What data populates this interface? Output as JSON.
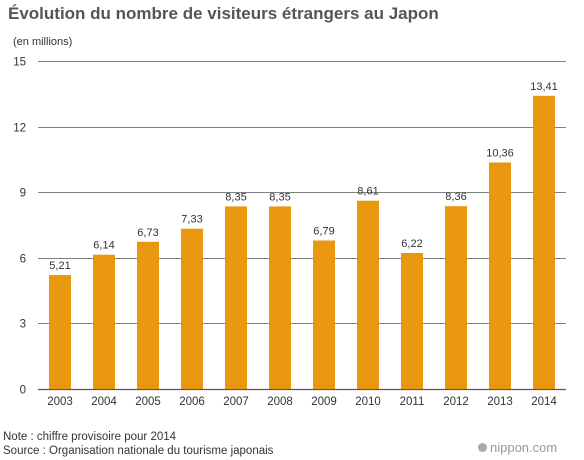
{
  "header": {
    "title": "Évolution du nombre de visiteurs étrangers au Japon",
    "unit_label": "(en millions)"
  },
  "footer": {
    "note": "Note : chiffre provisoire pour 2014",
    "source": "Source : Organisation nationale du tourisme japonais",
    "brand": "nippon.com"
  },
  "chart_data": {
    "type": "bar",
    "title": "Évolution du nombre de visiteurs étrangers au Japon",
    "ylabel": "(en millions)",
    "xlabel": "",
    "categories": [
      "2003",
      "2004",
      "2005",
      "2006",
      "2007",
      "2008",
      "2009",
      "2010",
      "2011",
      "2012",
      "2013",
      "2014"
    ],
    "values": [
      5.21,
      6.14,
      6.73,
      7.33,
      8.35,
      8.35,
      6.79,
      8.61,
      6.22,
      8.36,
      10.36,
      13.41
    ],
    "data_labels": [
      "5,21",
      "6,14",
      "6,73",
      "7,33",
      "8,35",
      "8,35",
      "6,79",
      "8,61",
      "6,22",
      "8,36",
      "10,36",
      "13,41"
    ],
    "ylim": [
      0,
      15
    ],
    "yticks": [
      0,
      3,
      6,
      9,
      12,
      15
    ],
    "grid": true,
    "bar_color": "#e8970f",
    "grid_color": "#555555"
  }
}
